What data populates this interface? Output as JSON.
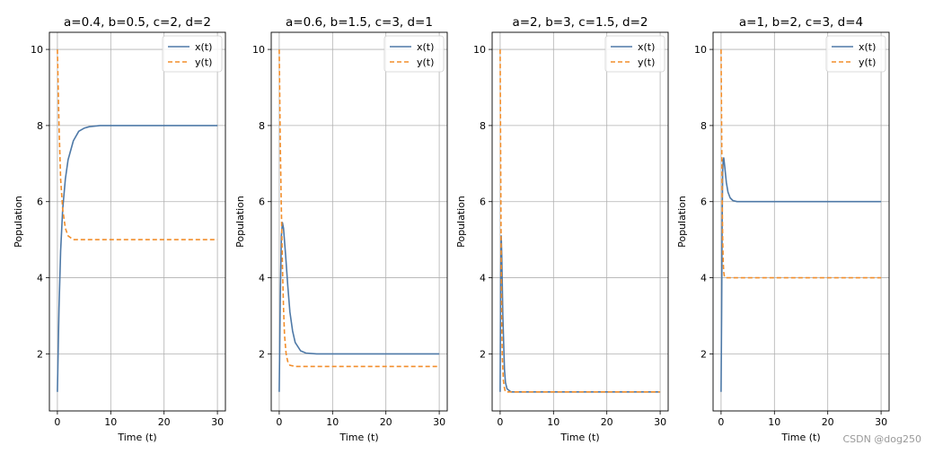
{
  "watermark": "CSDN @dog250",
  "chart_data": [
    {
      "type": "line",
      "title": "a=0.4, b=0.5, c=2, d=2",
      "xlabel": "Time (t)",
      "ylabel": "Population",
      "xlim": [
        -1.5,
        31.5
      ],
      "ylim": [
        0.5,
        10.45
      ],
      "xticks": [
        0,
        10,
        20,
        30
      ],
      "yticks": [
        2,
        4,
        6,
        8,
        10
      ],
      "grid": true,
      "legend": "top-right",
      "series": [
        {
          "name": "x(t)",
          "style": "solid",
          "color": "#4e79a7",
          "x": [
            0,
            0.3,
            0.6,
            1,
            1.5,
            2,
            3,
            4,
            5,
            6,
            8,
            10,
            15,
            20,
            30
          ],
          "y": [
            1,
            3.2,
            4.7,
            5.8,
            6.6,
            7.1,
            7.6,
            7.85,
            7.93,
            7.97,
            8.0,
            8.0,
            8.0,
            8.0,
            8.0
          ]
        },
        {
          "name": "y(t)",
          "style": "dashed",
          "color": "#f28e2b",
          "x": [
            0,
            0.3,
            0.6,
            1,
            1.5,
            2,
            3,
            5,
            10,
            20,
            30
          ],
          "y": [
            10,
            8.0,
            6.6,
            5.8,
            5.3,
            5.1,
            5.0,
            5.0,
            5.0,
            5.0,
            5.0
          ]
        }
      ]
    },
    {
      "type": "line",
      "title": "a=0.6, b=1.5, c=3, d=1",
      "xlabel": "Time (t)",
      "ylabel": "Population",
      "xlim": [
        -1.5,
        31.5
      ],
      "ylim": [
        0.5,
        10.45
      ],
      "xticks": [
        0,
        10,
        20,
        30
      ],
      "yticks": [
        2,
        4,
        6,
        8,
        10
      ],
      "grid": true,
      "legend": "top-right",
      "series": [
        {
          "name": "x(t)",
          "style": "solid",
          "color": "#4e79a7",
          "x": [
            0,
            0.2,
            0.4,
            0.6,
            0.8,
            1.2,
            1.6,
            2,
            2.5,
            3,
            4,
            5,
            7,
            10,
            20,
            30
          ],
          "y": [
            1,
            3.5,
            5.1,
            5.45,
            5.3,
            4.6,
            3.8,
            3.1,
            2.6,
            2.3,
            2.08,
            2.02,
            2.0,
            2.0,
            2.0,
            2.0
          ]
        },
        {
          "name": "y(t)",
          "style": "dashed",
          "color": "#f28e2b",
          "x": [
            0,
            0.2,
            0.4,
            0.6,
            0.8,
            1.0,
            1.3,
            1.6,
            2.0,
            3,
            5,
            10,
            20,
            30
          ],
          "y": [
            10,
            7.5,
            5.8,
            4.3,
            3.2,
            2.5,
            2.0,
            1.8,
            1.7,
            1.67,
            1.67,
            1.67,
            1.67,
            1.67
          ]
        }
      ]
    },
    {
      "type": "line",
      "title": "a=2, b=3, c=1.5, d=2",
      "xlabel": "Time (t)",
      "ylabel": "Population",
      "xlim": [
        -1.5,
        31.5
      ],
      "ylim": [
        0.5,
        10.45
      ],
      "xticks": [
        0,
        10,
        20,
        30
      ],
      "yticks": [
        2,
        4,
        6,
        8,
        10
      ],
      "grid": true,
      "legend": "top-right",
      "series": [
        {
          "name": "x(t)",
          "style": "solid",
          "color": "#4e79a7",
          "x": [
            0,
            0.1,
            0.2,
            0.3,
            0.5,
            0.8,
            1.0,
            1.3,
            2,
            3,
            10,
            20,
            30
          ],
          "y": [
            1,
            4.0,
            5.1,
            4.6,
            3.0,
            1.6,
            1.25,
            1.08,
            1.0,
            1.0,
            1.0,
            1.0,
            1.0
          ]
        },
        {
          "name": "y(t)",
          "style": "dashed",
          "color": "#f28e2b",
          "x": [
            0,
            0.1,
            0.2,
            0.3,
            0.4,
            0.6,
            0.8,
            1.0,
            2,
            10,
            20,
            30
          ],
          "y": [
            10,
            7.0,
            4.5,
            2.8,
            1.9,
            1.3,
            1.1,
            1.0,
            1.0,
            1.0,
            1.0,
            1.0
          ]
        }
      ]
    },
    {
      "type": "line",
      "title": "a=1, b=2, c=3, d=4",
      "xlabel": "Time (t)",
      "ylabel": "Population",
      "xlim": [
        -1.5,
        31.5
      ],
      "ylim": [
        0.5,
        10.45
      ],
      "xticks": [
        0,
        10,
        20,
        30
      ],
      "yticks": [
        2,
        4,
        6,
        8,
        10
      ],
      "grid": true,
      "legend": "top-right",
      "series": [
        {
          "name": "x(t)",
          "style": "solid",
          "color": "#4e79a7",
          "x": [
            0,
            0.1,
            0.2,
            0.3,
            0.4,
            0.5,
            0.7,
            1.0,
            1.3,
            1.7,
            2.2,
            3,
            5,
            10,
            20,
            30
          ],
          "y": [
            1,
            3.0,
            5.5,
            6.8,
            7.1,
            7.15,
            6.9,
            6.5,
            6.25,
            6.1,
            6.03,
            6.0,
            6.0,
            6.0,
            6.0,
            6.0
          ]
        },
        {
          "name": "y(t)",
          "style": "dashed",
          "color": "#f28e2b",
          "x": [
            0,
            0.1,
            0.2,
            0.3,
            0.4,
            0.5,
            0.6,
            0.8,
            1.0,
            2,
            5,
            10,
            20,
            30
          ],
          "y": [
            10,
            8.0,
            6.2,
            5.0,
            4.4,
            4.15,
            4.05,
            4.0,
            4.0,
            4.0,
            4.0,
            4.0,
            4.0,
            4.0
          ]
        }
      ]
    }
  ]
}
